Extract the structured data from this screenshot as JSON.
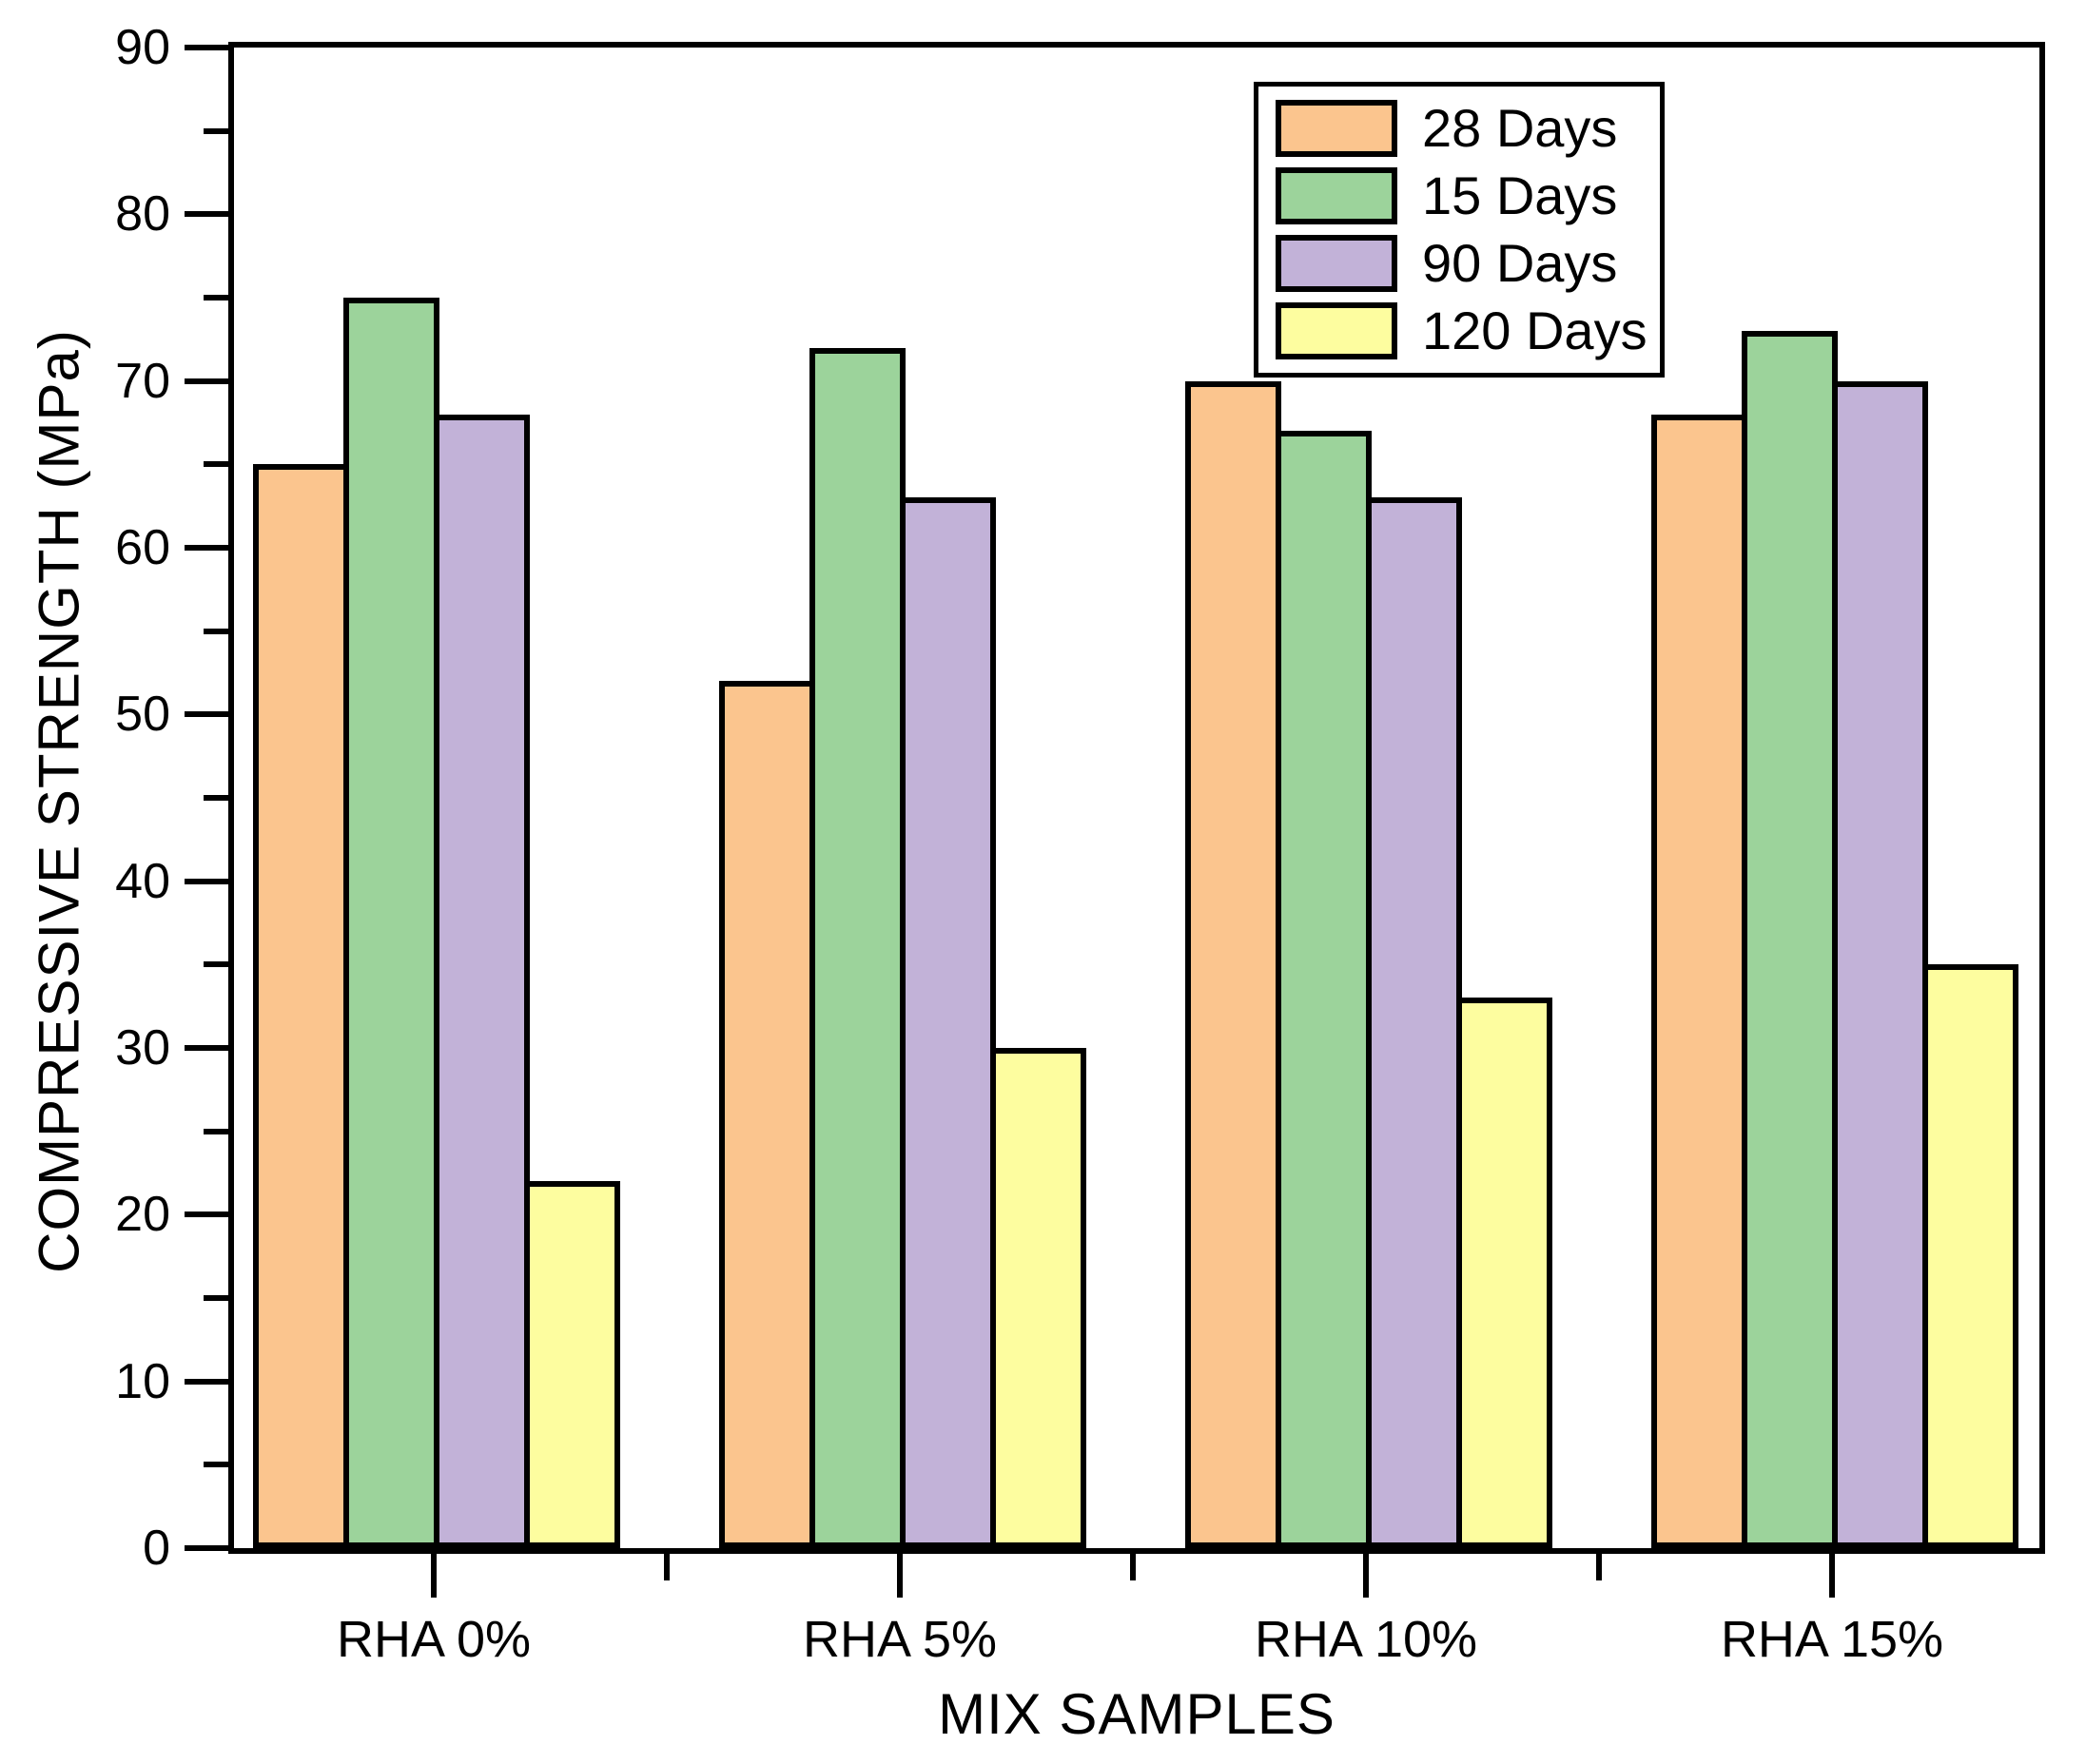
{
  "chart_data": {
    "type": "bar",
    "title": "",
    "xlabel": "MIX SAMPLES",
    "ylabel": "COMPRESSIVE STRENGTH (MPa)",
    "categories": [
      "RHA 0%",
      "RHA 5%",
      "RHA 10%",
      "RHA 15%"
    ],
    "series": [
      {
        "name": "28 Days",
        "color": "#FBC58E",
        "values": [
          65,
          52,
          70,
          68
        ]
      },
      {
        "name": "15 Days",
        "color": "#9CD39B",
        "values": [
          75,
          72,
          67,
          73
        ]
      },
      {
        "name": "90 Days",
        "color": "#C2B2D8",
        "values": [
          68,
          63,
          63,
          70
        ]
      },
      {
        "name": "120 Days",
        "color": "#FDFD9F",
        "values": [
          22,
          30,
          33,
          35
        ]
      }
    ],
    "ylim": [
      0,
      90
    ],
    "yticks": [
      0,
      10,
      20,
      30,
      40,
      50,
      60,
      70,
      80,
      90
    ],
    "y_major_step": 10,
    "y_minor_step": 5,
    "grid": false,
    "legend_position": "top-right",
    "bar_border_color": "#000000",
    "frame_color": "#000000",
    "background_color": "#FFFFFF"
  }
}
